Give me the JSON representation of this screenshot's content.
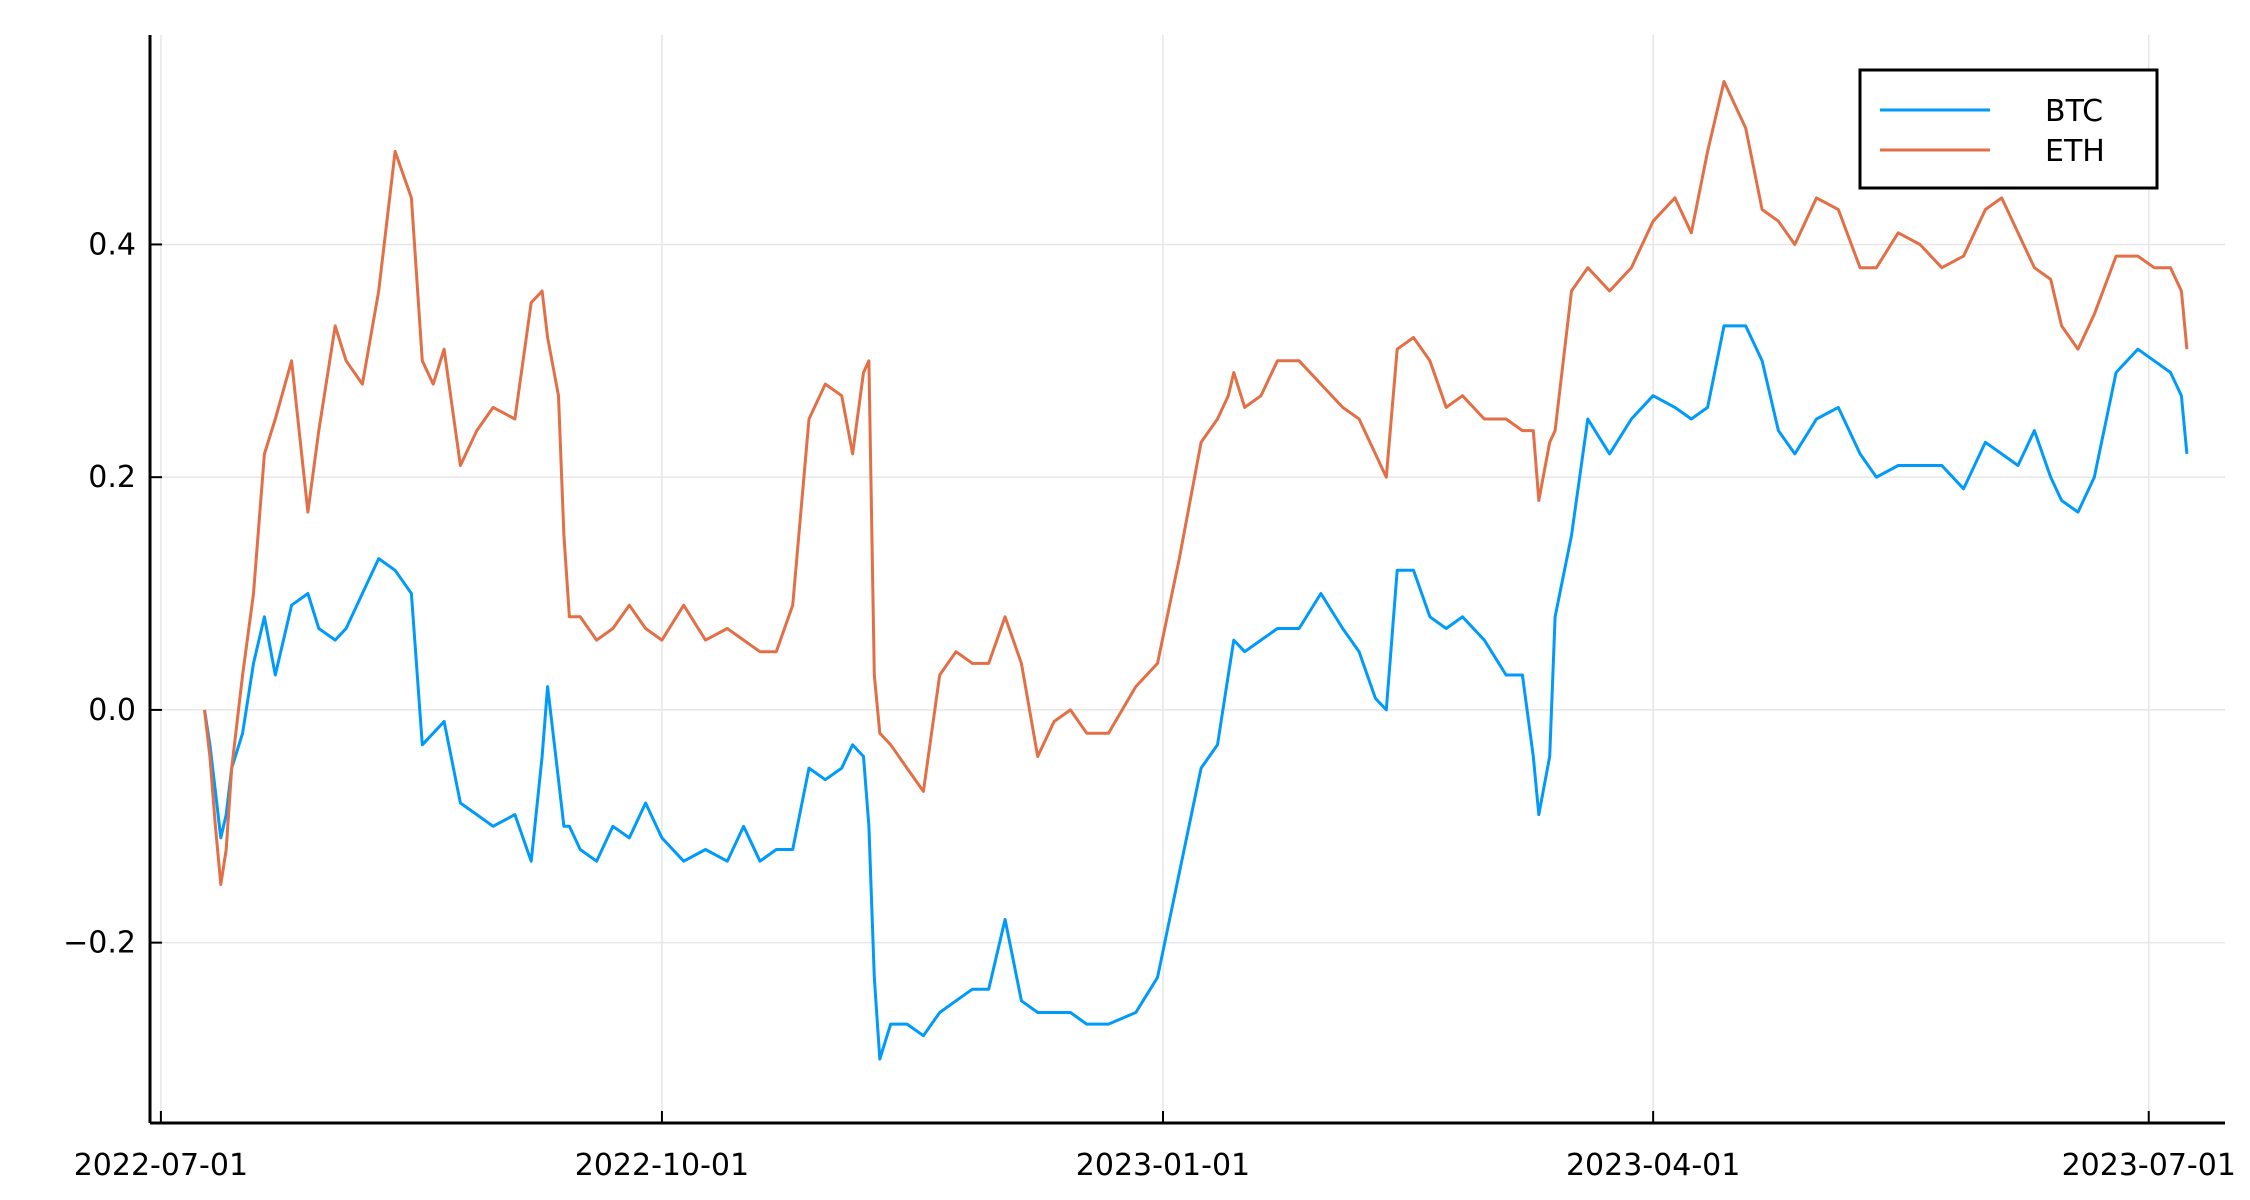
{
  "chart_data": {
    "type": "line",
    "title": "",
    "xlabel": "",
    "ylabel": "",
    "xlim": [
      "2022-06-29",
      "2023-07-15"
    ],
    "ylim": [
      -0.355,
      0.58
    ],
    "grid": true,
    "legend_position": "top-right",
    "x_ticks": [
      {
        "value": "2022-07-01",
        "label": "2022-07-01"
      },
      {
        "value": "2022-10-01",
        "label": "2022-10-01"
      },
      {
        "value": "2023-01-01",
        "label": "2023-01-01"
      },
      {
        "value": "2023-04-01",
        "label": "2023-04-01"
      },
      {
        "value": "2023-07-01",
        "label": "2023-07-01"
      }
    ],
    "y_ticks": [
      {
        "value": -0.2,
        "label": "−0.2"
      },
      {
        "value": 0.0,
        "label": "0.0"
      },
      {
        "value": 0.2,
        "label": "0.2"
      },
      {
        "value": 0.4,
        "label": "0.4"
      }
    ],
    "x": [
      "2022-07-09",
      "2022-07-10",
      "2022-07-11",
      "2022-07-12",
      "2022-07-13",
      "2022-07-14",
      "2022-07-16",
      "2022-07-18",
      "2022-07-20",
      "2022-07-22",
      "2022-07-25",
      "2022-07-28",
      "2022-07-30",
      "2022-08-02",
      "2022-08-04",
      "2022-08-07",
      "2022-08-10",
      "2022-08-13",
      "2022-08-16",
      "2022-08-18",
      "2022-08-20",
      "2022-08-22",
      "2022-08-25",
      "2022-08-28",
      "2022-08-31",
      "2022-09-04",
      "2022-09-07",
      "2022-09-09",
      "2022-09-10",
      "2022-09-12",
      "2022-09-13",
      "2022-09-14",
      "2022-09-16",
      "2022-09-19",
      "2022-09-22",
      "2022-09-25",
      "2022-09-28",
      "2022-10-01",
      "2022-10-05",
      "2022-10-09",
      "2022-10-13",
      "2022-10-16",
      "2022-10-19",
      "2022-10-22",
      "2022-10-25",
      "2022-10-28",
      "2022-10-31",
      "2022-11-03",
      "2022-11-05",
      "2022-11-07",
      "2022-11-08",
      "2022-11-09",
      "2022-11-10",
      "2022-11-12",
      "2022-11-15",
      "2022-11-18",
      "2022-11-21",
      "2022-11-24",
      "2022-11-27",
      "2022-11-30",
      "2022-12-03",
      "2022-12-06",
      "2022-12-09",
      "2022-12-12",
      "2022-12-15",
      "2022-12-18",
      "2022-12-22",
      "2022-12-27",
      "2022-12-31",
      "2023-01-04",
      "2023-01-08",
      "2023-01-11",
      "2023-01-13",
      "2023-01-14",
      "2023-01-16",
      "2023-01-19",
      "2023-01-22",
      "2023-01-26",
      "2023-01-30",
      "2023-02-03",
      "2023-02-06",
      "2023-02-09",
      "2023-02-11",
      "2023-02-13",
      "2023-02-16",
      "2023-02-19",
      "2023-02-22",
      "2023-02-25",
      "2023-03-01",
      "2023-03-05",
      "2023-03-08",
      "2023-03-10",
      "2023-03-11",
      "2023-03-13",
      "2023-03-14",
      "2023-03-17",
      "2023-03-20",
      "2023-03-24",
      "2023-03-28",
      "2023-04-01",
      "2023-04-05",
      "2023-04-08",
      "2023-04-11",
      "2023-04-14",
      "2023-04-18",
      "2023-04-21",
      "2023-04-24",
      "2023-04-27",
      "2023-05-01",
      "2023-05-05",
      "2023-05-09",
      "2023-05-12",
      "2023-05-16",
      "2023-05-20",
      "2023-05-24",
      "2023-05-28",
      "2023-06-01",
      "2023-06-04",
      "2023-06-07",
      "2023-06-10",
      "2023-06-13",
      "2023-06-15",
      "2023-06-18",
      "2023-06-21",
      "2023-06-25",
      "2023-06-29",
      "2023-07-02",
      "2023-07-05",
      "2023-07-07",
      "2023-07-08"
    ],
    "series": [
      {
        "name": "BTC",
        "color": "#009AFA",
        "values": [
          0.0,
          -0.03,
          -0.07,
          -0.11,
          -0.09,
          -0.05,
          -0.02,
          0.04,
          0.08,
          0.03,
          0.09,
          0.1,
          0.07,
          0.06,
          0.07,
          0.1,
          0.13,
          0.12,
          0.1,
          -0.03,
          -0.02,
          -0.01,
          -0.08,
          -0.09,
          -0.1,
          -0.09,
          -0.13,
          -0.04,
          0.02,
          -0.06,
          -0.1,
          -0.1,
          -0.12,
          -0.13,
          -0.1,
          -0.11,
          -0.08,
          -0.11,
          -0.13,
          -0.12,
          -0.13,
          -0.1,
          -0.13,
          -0.12,
          -0.12,
          -0.05,
          -0.06,
          -0.05,
          -0.03,
          -0.04,
          -0.1,
          -0.23,
          -0.3,
          -0.27,
          -0.27,
          -0.28,
          -0.26,
          -0.25,
          -0.24,
          -0.24,
          -0.18,
          -0.25,
          -0.26,
          -0.26,
          -0.26,
          -0.27,
          -0.27,
          -0.26,
          -0.23,
          -0.14,
          -0.05,
          -0.03,
          0.03,
          0.06,
          0.05,
          0.06,
          0.07,
          0.07,
          0.1,
          0.07,
          0.05,
          0.01,
          0.0,
          0.12,
          0.12,
          0.08,
          0.07,
          0.08,
          0.06,
          0.03,
          0.03,
          -0.04,
          -0.09,
          -0.04,
          0.08,
          0.15,
          0.25,
          0.22,
          0.25,
          0.27,
          0.26,
          0.25,
          0.26,
          0.33,
          0.33,
          0.3,
          0.24,
          0.22,
          0.25,
          0.26,
          0.22,
          0.2,
          0.21,
          0.21,
          0.21,
          0.19,
          0.23,
          0.22,
          0.21,
          0.24,
          0.2,
          0.18,
          0.17,
          0.2,
          0.29,
          0.31,
          0.3,
          0.29,
          0.27,
          0.22
        ]
      },
      {
        "name": "ETH",
        "color": "#E26F46",
        "values": [
          0.0,
          -0.04,
          -0.1,
          -0.15,
          -0.12,
          -0.05,
          0.03,
          0.1,
          0.22,
          0.25,
          0.3,
          0.17,
          0.24,
          0.33,
          0.3,
          0.28,
          0.36,
          0.48,
          0.44,
          0.3,
          0.28,
          0.31,
          0.21,
          0.24,
          0.26,
          0.25,
          0.35,
          0.36,
          0.32,
          0.27,
          0.15,
          0.08,
          0.08,
          0.06,
          0.07,
          0.09,
          0.07,
          0.06,
          0.09,
          0.06,
          0.07,
          0.06,
          0.05,
          0.05,
          0.09,
          0.25,
          0.28,
          0.27,
          0.22,
          0.29,
          0.3,
          0.03,
          -0.02,
          -0.03,
          -0.05,
          -0.07,
          0.03,
          0.05,
          0.04,
          0.04,
          0.08,
          0.04,
          -0.04,
          -0.01,
          0.0,
          -0.02,
          -0.02,
          0.02,
          0.04,
          0.13,
          0.23,
          0.25,
          0.27,
          0.29,
          0.26,
          0.27,
          0.3,
          0.3,
          0.28,
          0.26,
          0.25,
          0.22,
          0.2,
          0.31,
          0.32,
          0.3,
          0.26,
          0.27,
          0.25,
          0.25,
          0.24,
          0.24,
          0.18,
          0.23,
          0.24,
          0.36,
          0.38,
          0.36,
          0.38,
          0.42,
          0.44,
          0.41,
          0.48,
          0.54,
          0.5,
          0.43,
          0.42,
          0.4,
          0.44,
          0.43,
          0.38,
          0.38,
          0.41,
          0.4,
          0.38,
          0.39,
          0.43,
          0.44,
          0.41,
          0.38,
          0.37,
          0.33,
          0.31,
          0.34,
          0.39,
          0.39,
          0.38,
          0.38,
          0.36,
          0.31
        ]
      }
    ]
  }
}
